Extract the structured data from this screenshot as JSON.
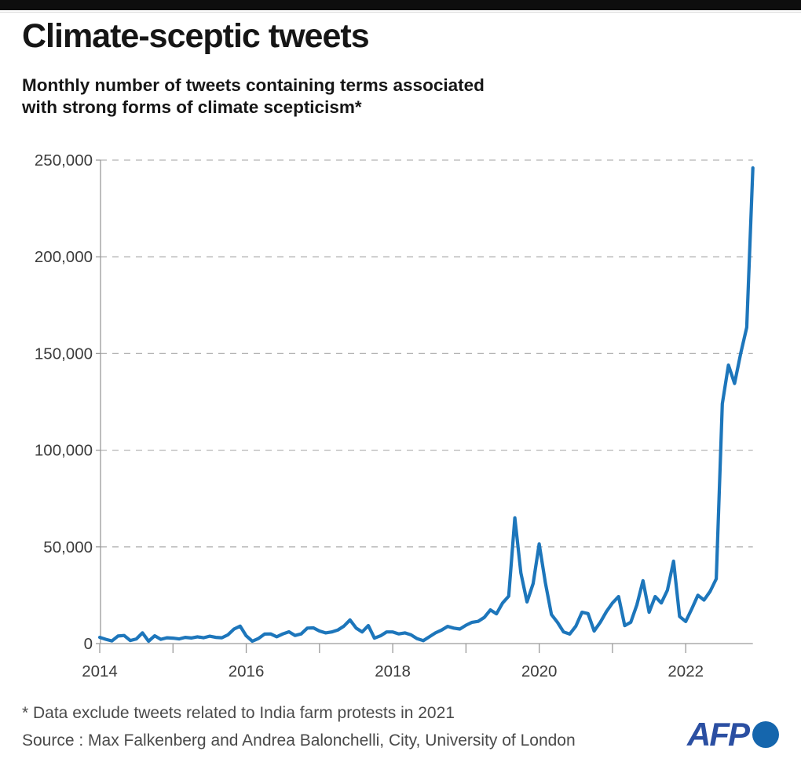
{
  "header": {
    "title": "Climate-sceptic tweets",
    "subtitle_lines": [
      "Monthly number of tweets containing terms associated",
      "with strong forms of climate scepticism*"
    ]
  },
  "footer": {
    "note": "* Data exclude tweets related to India farm protests in 2021",
    "source": "Source : Max Falkenberg and Andrea Balonchelli, City, University of London",
    "logo_text": "AFP"
  },
  "colors": {
    "line": "#1d76bb",
    "grid": "#b4b4b4",
    "axis": "#9a9a9a",
    "tick_label": "#3c3c3c",
    "top_bar": "#0e0e0e",
    "logo_text": "#2b4fa2",
    "logo_globe": "#1566ad"
  },
  "chart_data": {
    "type": "line",
    "title": "Climate-sceptic tweets",
    "subtitle": "Monthly number of tweets containing terms associated with strong forms of climate scepticism*",
    "xlabel": "",
    "ylabel": "",
    "x_unit": "month",
    "x_start": "2014-01",
    "x_end": "2022-12",
    "ylim": [
      0,
      250000
    ],
    "grid": "horizontal-dashed",
    "legend": "none",
    "y_ticks": [
      {
        "value": 0,
        "label": "0"
      },
      {
        "value": 50000,
        "label": "50,000"
      },
      {
        "value": 100000,
        "label": "100,000"
      },
      {
        "value": 150000,
        "label": "150,000"
      },
      {
        "value": 200000,
        "label": "200,000"
      },
      {
        "value": 250000,
        "label": "250,000"
      }
    ],
    "x_tick_years": [
      2014,
      2015,
      2016,
      2017,
      2018,
      2019,
      2020,
      2021,
      2022
    ],
    "x_labeled_years": [
      "2014",
      "2016",
      "2018",
      "2020",
      "2022"
    ],
    "series": [
      {
        "name": "Climate-sceptic tweets per month",
        "values": [
          3200,
          2200,
          1400,
          3900,
          4200,
          1600,
          2400,
          5500,
          1200,
          4000,
          2200,
          3000,
          2800,
          2400,
          3200,
          2900,
          3500,
          3000,
          3800,
          3200,
          3000,
          4500,
          7500,
          9000,
          4000,
          1200,
          2600,
          4900,
          5000,
          3500,
          5000,
          6100,
          4200,
          5000,
          8000,
          8100,
          6500,
          5500,
          6000,
          7000,
          9000,
          12200,
          8000,
          6000,
          9300,
          2800,
          4000,
          6000,
          6000,
          5000,
          5500,
          4500,
          2500,
          1500,
          3500,
          5500,
          7000,
          8900,
          8000,
          7500,
          9500,
          11000,
          11500,
          13500,
          17400,
          15400,
          21000,
          24500,
          65000,
          36500,
          21500,
          31000,
          51500,
          31600,
          15000,
          10900,
          6000,
          4900,
          9000,
          16200,
          15500,
          6500,
          11000,
          16500,
          21000,
          24300,
          9300,
          11000,
          20000,
          32500,
          16200,
          24300,
          21000,
          27600,
          42600,
          14000,
          11400,
          18000,
          25000,
          22500,
          27000,
          33500,
          124000,
          144000,
          134500,
          150000,
          163500,
          246000
        ]
      }
    ]
  }
}
